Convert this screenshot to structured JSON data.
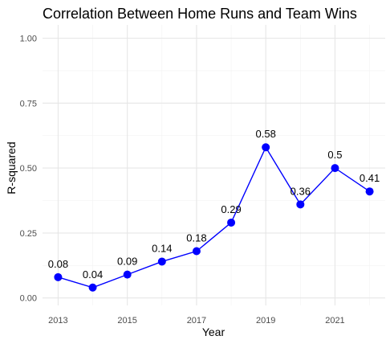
{
  "chart_data": {
    "type": "line",
    "title": "Correlation Between Home Runs and Team Wins",
    "xlabel": "Year",
    "ylabel": "R-squared",
    "x": [
      2013,
      2014,
      2015,
      2016,
      2017,
      2018,
      2019,
      2020,
      2021,
      2022
    ],
    "series": [
      {
        "values": [
          0.08,
          0.04,
          0.09,
          0.14,
          0.18,
          0.29,
          0.58,
          0.36,
          0.5,
          0.41
        ]
      }
    ],
    "data_labels": [
      "0.08",
      "0.04",
      "0.09",
      "0.14",
      "0.18",
      "0.29",
      "0.58",
      "0.36",
      "0.5",
      "0.41"
    ],
    "x_ticks": [
      "2013",
      "2015",
      "2017",
      "2019",
      "2021"
    ],
    "y_ticks": [
      "0.00",
      "0.25",
      "0.50",
      "0.75",
      "1.00"
    ],
    "xlim": [
      2012.55,
      2022.45
    ],
    "ylim": [
      0,
      1
    ],
    "grid": true,
    "line_color": "#0000ff",
    "point_color": "#0000ff"
  }
}
